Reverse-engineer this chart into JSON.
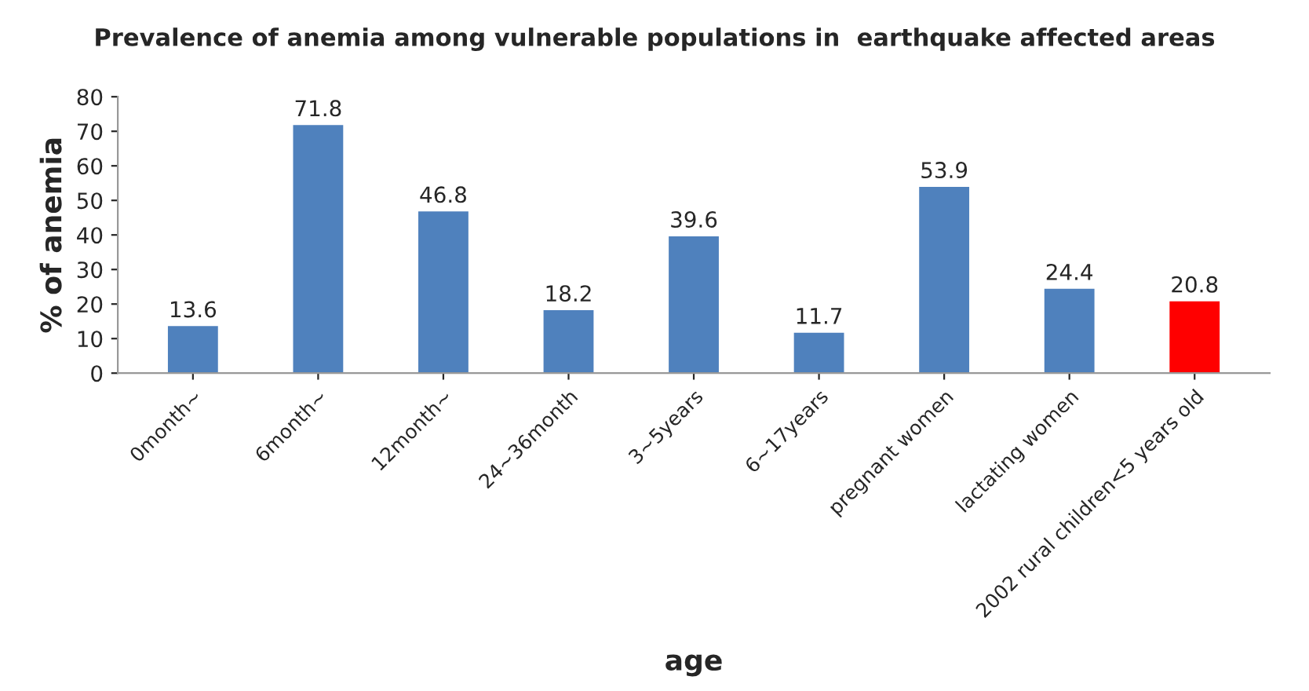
{
  "chart_data": {
    "type": "bar",
    "title": "Prevalence of anemia among vulnerable populations in  earthquake affected areas",
    "xlabel": "age",
    "ylabel": "% of anemia",
    "categories": [
      "0month~",
      "6month~",
      "12month~",
      "24~36month",
      "3~5years",
      "6~17years",
      "pregnant women",
      "lactating women",
      "2002 rural children<5 years old"
    ],
    "values": [
      13.6,
      71.8,
      46.8,
      18.2,
      39.6,
      11.7,
      53.9,
      24.4,
      20.8
    ],
    "colors": [
      "#4f81bd",
      "#4f81bd",
      "#4f81bd",
      "#4f81bd",
      "#4f81bd",
      "#4f81bd",
      "#4f81bd",
      "#4f81bd",
      "#ff0000"
    ],
    "ylim": [
      0,
      80
    ],
    "yticks": [
      0,
      10,
      20,
      30,
      40,
      50,
      60,
      70,
      80
    ],
    "data_labels": true,
    "grid": false,
    "legend": false
  }
}
